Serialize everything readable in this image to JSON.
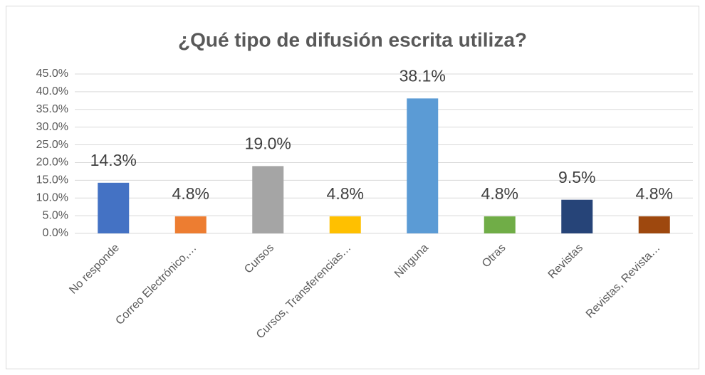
{
  "chart_data": {
    "type": "bar",
    "title": "¿Qué tipo de difusión escrita utiliza?",
    "categories": [
      "No responde",
      "Correo Electrónico,…",
      "Cursos",
      "Cursos, Transferencias…",
      "Ninguna",
      "Otras",
      "Revistas",
      "Revistas, Revista…"
    ],
    "values": [
      14.3,
      4.8,
      19.0,
      4.8,
      38.1,
      4.8,
      9.5,
      4.8
    ],
    "value_labels": [
      "14.3%",
      "4.8%",
      "19.0%",
      "4.8%",
      "38.1%",
      "4.8%",
      "9.5%",
      "4.8%"
    ],
    "colors": [
      "#4472c4",
      "#ed7d31",
      "#a5a5a5",
      "#ffc000",
      "#5b9bd5",
      "#70ad47",
      "#264478",
      "#9e480e"
    ],
    "ylim": [
      0,
      45
    ],
    "yticks": [
      {
        "value": 0,
        "label": "0.0%"
      },
      {
        "value": 5,
        "label": "5.0%"
      },
      {
        "value": 10,
        "label": "10.0%"
      },
      {
        "value": 15,
        "label": "15.0%"
      },
      {
        "value": 20,
        "label": "20.0%"
      },
      {
        "value": 25,
        "label": "25.0%"
      },
      {
        "value": 30,
        "label": "30.0%"
      },
      {
        "value": 35,
        "label": "35.0%"
      },
      {
        "value": 40,
        "label": "40.0%"
      },
      {
        "value": 45,
        "label": "45.0%"
      }
    ],
    "grid": true
  }
}
